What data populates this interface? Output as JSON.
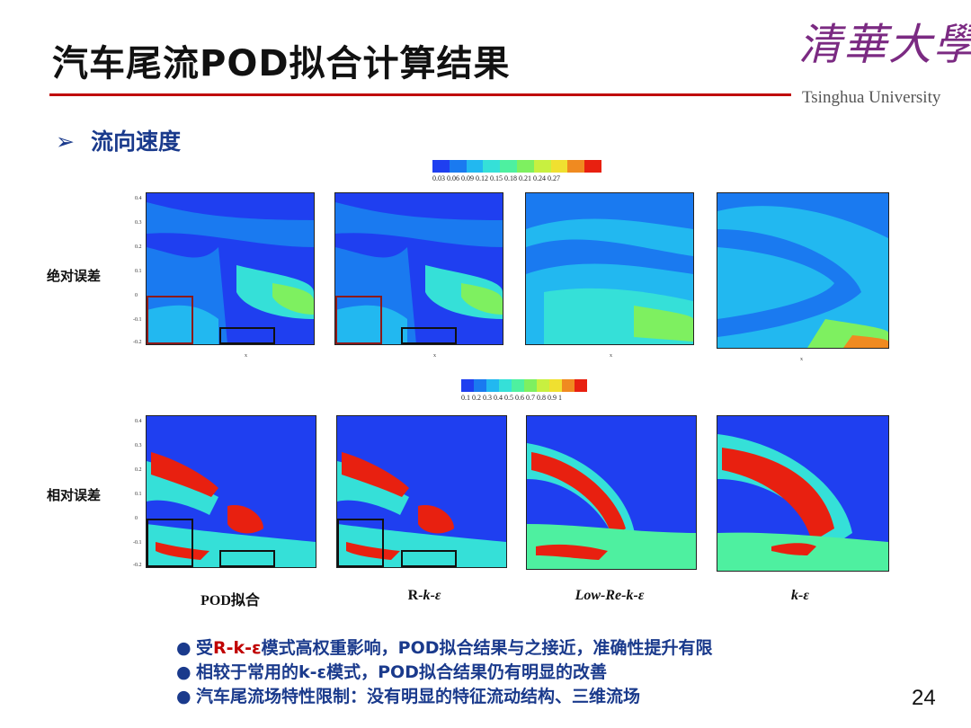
{
  "slide": {
    "title": "汽车尾流POD拟合计算结果",
    "logo_cn": "清華大學",
    "logo_en": "Tsinghua University",
    "section": "流向速度",
    "page_number": "24"
  },
  "rows": [
    {
      "label": "绝对误差",
      "colorbar_ticks": "0.03 0.06 0.09 0.12 0.15 0.18 0.21 0.24 0.27"
    },
    {
      "label": "相对误差",
      "colorbar_ticks": "0.1 0.2 0.3 0.4 0.5 0.6 0.7 0.8 0.9 1"
    }
  ],
  "columns": [
    {
      "label": "POD拟合"
    },
    {
      "label": "R-k-ε"
    },
    {
      "label": "Low-Re-k-ε"
    },
    {
      "label": "k-ε"
    }
  ],
  "axes": {
    "x_name": "x",
    "y_name": "z",
    "y_ticks_top": [
      "0.4",
      "0.3",
      "0.2",
      "0.1",
      "0",
      "-0.1",
      "-0.2"
    ],
    "y_ticks_bottom": [
      "0.4",
      "0.3",
      "0.2",
      "0.1",
      "0",
      "-0.1",
      "-0.2"
    ],
    "x_ticks_a": [
      "0.1",
      "0.2",
      "0.3",
      "0.4",
      "0.5",
      "0.6",
      "0.7",
      "0.1"
    ],
    "x_ticks_b": [
      "0.1",
      "0.2",
      "0.3",
      "0.4",
      "0.5",
      "0.6",
      "0.7",
      "0.8"
    ]
  },
  "conclusions": {
    "p1_pre": "受",
    "p1_red": "R-k-ε",
    "p1_post": "模式高权重影响，POD拟合结果与之接近，准确性提升有限",
    "p2": "相较于常用的k-ε模式，POD拟合结果仍有明显的改善",
    "p3": "汽车尾流场特性限制：没有明显的特征流动结构、三维流场"
  },
  "colors": {
    "title_rule": "#c00000",
    "bullet_text": "#1a3a8c",
    "logo": "#7b2a82",
    "colormap": [
      "#1f3ff0",
      "#1a7af0",
      "#22b8f0",
      "#35e0d8",
      "#4ef0a0",
      "#7ef060",
      "#c8f040",
      "#f0e030",
      "#f08a20",
      "#e82010"
    ]
  }
}
